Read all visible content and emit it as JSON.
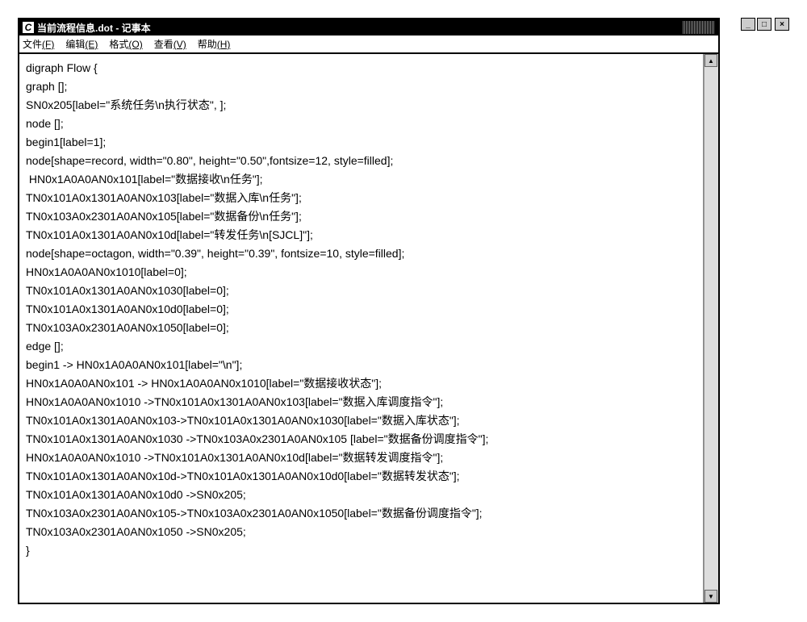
{
  "window": {
    "title": "当前流程信息.dot - 记事本",
    "icon_letter": "C"
  },
  "menubar": {
    "items": [
      {
        "label": "文件",
        "hotkey": "(F)"
      },
      {
        "label": "编辑",
        "hotkey": "(E)"
      },
      {
        "label": "格式",
        "hotkey": "(O)"
      },
      {
        "label": "查看",
        "hotkey": "(V)"
      },
      {
        "label": "帮助",
        "hotkey": "(H)"
      }
    ]
  },
  "content": {
    "lines": [
      "digraph Flow {",
      "graph [];",
      "SN0x205[label=\"系统任务\\n执行状态\", ];",
      "node [];",
      "begin1[label=1];",
      "node[shape=record, width=\"0.80\", height=\"0.50\",fontsize=12, style=filled];",
      " HN0x1A0A0AN0x101[label=\"数据接收\\n任务\"];",
      "TN0x101A0x1301A0AN0x103[label=\"数据入库\\n任务\"];",
      "TN0x103A0x2301A0AN0x105[label=\"数据备份\\n任务\"];",
      "TN0x101A0x1301A0AN0x10d[label=\"转发任务\\n[SJCL]\"];",
      "node[shape=octagon, width=\"0.39\", height=\"0.39\", fontsize=10, style=filled];",
      "HN0x1A0A0AN0x1010[label=0];",
      "TN0x101A0x1301A0AN0x1030[label=0];",
      "TN0x101A0x1301A0AN0x10d0[label=0];",
      "TN0x103A0x2301A0AN0x1050[label=0];",
      "edge [];",
      "begin1 -> HN0x1A0A0AN0x101[label=\"\\n\"];",
      "HN0x1A0A0AN0x101 -> HN0x1A0A0AN0x1010[label=\"数据接收状态\"];",
      "HN0x1A0A0AN0x1010 ->TN0x101A0x1301A0AN0x103[label=\"数据入库调度指令\"];",
      "TN0x101A0x1301A0AN0x103->TN0x101A0x1301A0AN0x1030[label=\"数据入库状态\"];",
      "TN0x101A0x1301A0AN0x1030 ->TN0x103A0x2301A0AN0x105 [label=\"数据备份调度指令\"];",
      "HN0x1A0A0AN0x1010 ->TN0x101A0x1301A0AN0x10d[label=\"数据转发调度指令\"];",
      "TN0x101A0x1301A0AN0x10d->TN0x101A0x1301A0AN0x10d0[label=\"数据转发状态\"];",
      "TN0x101A0x1301A0AN0x10d0 ->SN0x205;",
      "TN0x103A0x2301A0AN0x105->TN0x103A0x2301A0AN0x1050[label=\"数据备份调度指令\"];",
      "TN0x103A0x2301A0AN0x1050 ->SN0x205;",
      "}"
    ]
  },
  "win_controls": {
    "minimize": "_",
    "maximize": "□",
    "close": "×"
  },
  "scroll": {
    "up": "▲",
    "down": "▼"
  }
}
